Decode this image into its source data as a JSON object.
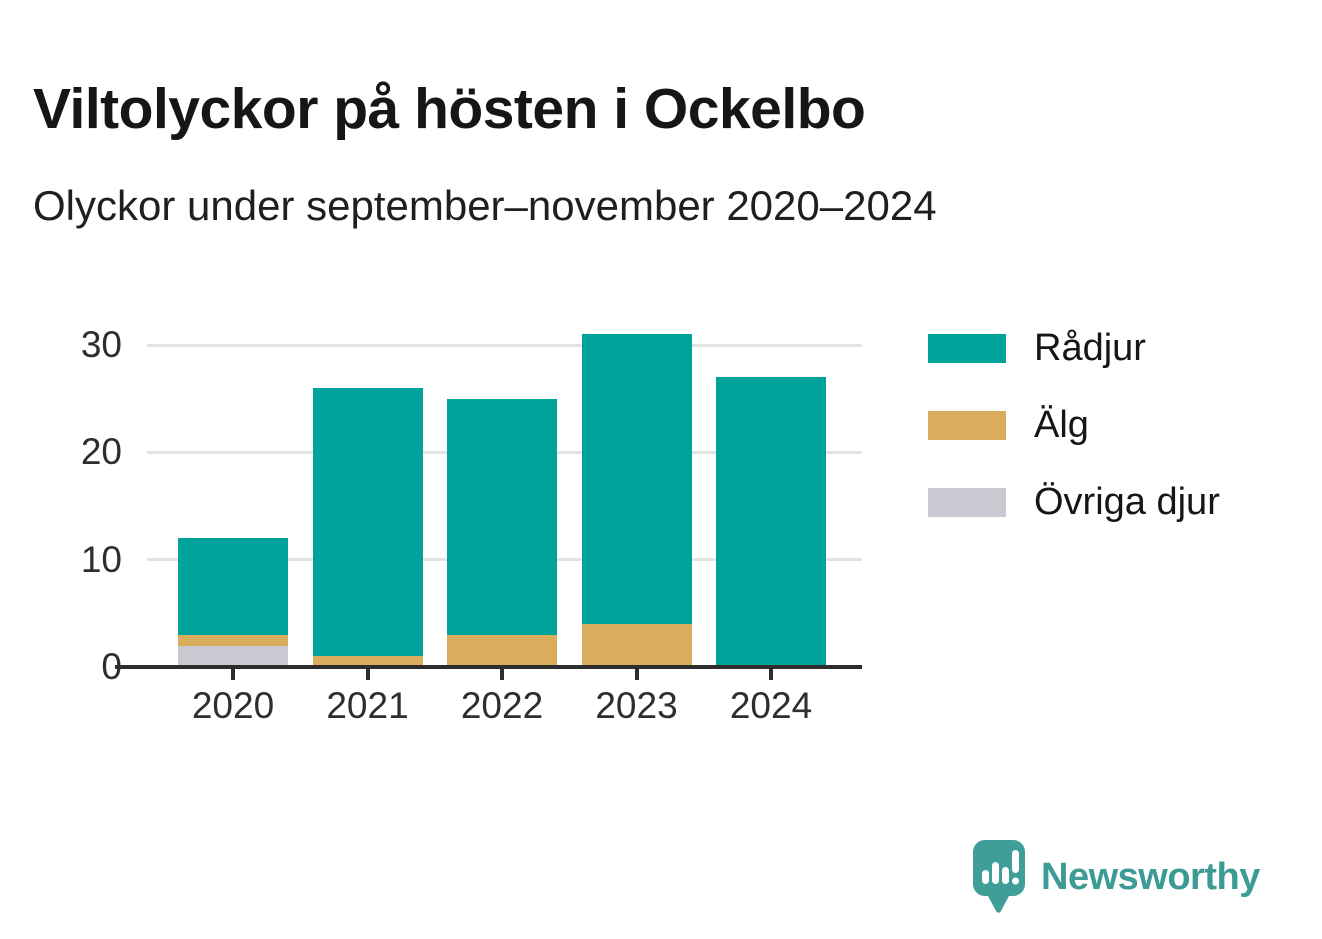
{
  "header": {
    "title": "Viltolyckor på hösten i Ockelbo",
    "subtitle": "Olyckor under september–november 2020–2024"
  },
  "chart_data": {
    "type": "bar",
    "stacked": true,
    "title": "Viltolyckor på hösten i Ockelbo",
    "subtitle": "Olyckor under september–november 2020–2024",
    "categories": [
      "2020",
      "2021",
      "2022",
      "2023",
      "2024"
    ],
    "series": [
      {
        "name": "Rådjur",
        "color": "#00a39b",
        "values": [
          9,
          25,
          22,
          27,
          27
        ]
      },
      {
        "name": "Älg",
        "color": "#d9ad5c",
        "values": [
          1,
          1,
          3,
          4,
          0
        ]
      },
      {
        "name": "Övriga djur",
        "color": "#cac9d2",
        "values": [
          2,
          0,
          0,
          0,
          0
        ]
      }
    ],
    "stack_order_bottom_to_top": [
      "Övriga djur",
      "Älg",
      "Rådjur"
    ],
    "totals": [
      12,
      26,
      25,
      31,
      27
    ],
    "xlabel": "",
    "ylabel": "",
    "y_ticks": [
      0,
      10,
      20,
      30
    ],
    "ylim": [
      0,
      34
    ],
    "grid": "horizontal",
    "legend_position": "right",
    "colors": {
      "grid": "#e3e3e3",
      "axis": "#2d2d2d",
      "axis_text": "#2e2e2e"
    }
  },
  "footer": {
    "brand": "Newsworthy",
    "brand_color": "#3d9b95",
    "logo_icon": "newsworthy-speech-bubble-chart-icon"
  }
}
